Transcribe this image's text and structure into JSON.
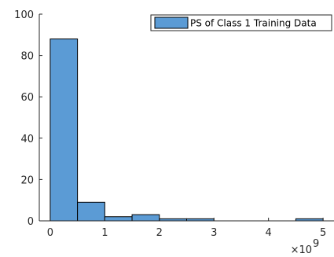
{
  "chart_data": {
    "type": "bar",
    "subtype": "histogram",
    "bin_edges": [
      0,
      0.5,
      1.0,
      1.5,
      2.0,
      2.5,
      3.0,
      3.5,
      4.0,
      4.5,
      5.0
    ],
    "values": [
      88,
      9,
      2,
      3,
      1,
      1,
      0,
      0,
      0,
      1
    ],
    "x_scale_exponent_label": "×10",
    "x_scale_exponent_power": "9",
    "x_ticks": [
      0,
      1,
      2,
      3,
      4,
      5
    ],
    "y_ticks": [
      0,
      20,
      40,
      60,
      80,
      100
    ],
    "xlim": [
      -0.2,
      5.2
    ],
    "ylim": [
      0,
      100
    ],
    "title": "",
    "xlabel": "",
    "ylabel": "",
    "grid": false,
    "legend": {
      "position": "top-right",
      "entries": [
        {
          "label": "PS of Class 1 Training Data",
          "color": "#5b9bd5"
        }
      ]
    },
    "colors": {
      "bar_fill": "#5b9bd5",
      "bar_edge": "#000000",
      "axis": "#262626"
    }
  }
}
